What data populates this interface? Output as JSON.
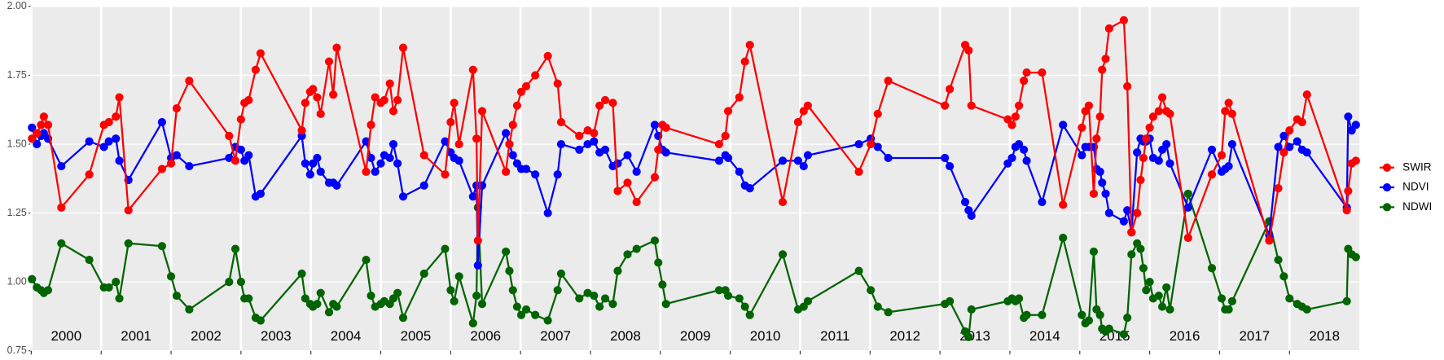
{
  "chart_data": {
    "type": "line",
    "x": [
      2000.01,
      2000.08,
      2000.14,
      2000.18,
      2000.24,
      2000.43,
      2000.83,
      2001.04,
      2001.11,
      2001.21,
      2001.26,
      2001.39,
      2001.87,
      2002.0,
      2002.08,
      2002.26,
      2002.83,
      2002.92,
      2003.0,
      2003.05,
      2003.11,
      2003.21,
      2003.28,
      2003.87,
      2003.92,
      2003.99,
      2004.03,
      2004.09,
      2004.14,
      2004.26,
      2004.32,
      2004.37,
      2004.79,
      2004.86,
      2004.92,
      2005.0,
      2005.05,
      2005.13,
      2005.18,
      2005.24,
      2005.32,
      2005.62,
      2005.92,
      2006.0,
      2006.05,
      2006.12,
      2006.32,
      2006.37,
      2006.39,
      2006.45,
      2006.79,
      2006.84,
      2006.89,
      2006.95,
      2007.01,
      2007.08,
      2007.21,
      2007.39,
      2007.53,
      2007.58,
      2007.84,
      2007.96,
      2008.05,
      2008.13,
      2008.21,
      2008.32,
      2008.39,
      2008.53,
      2008.66,
      2008.92,
      2008.97,
      2009.03,
      2009.08,
      2009.84,
      2009.93,
      2009.97,
      2010.13,
      2010.21,
      2010.28,
      2010.75,
      2010.97,
      2011.05,
      2011.11,
      2011.84,
      2012.01,
      2012.11,
      2012.26,
      2013.07,
      2013.14,
      2013.36,
      2013.41,
      2013.45,
      2013.97,
      2014.03,
      2014.08,
      2014.13,
      2014.2,
      2014.24,
      2014.46,
      2014.76,
      2015.03,
      2015.08,
      2015.13,
      2015.2,
      2015.24,
      2015.29,
      2015.32,
      2015.37,
      2015.42,
      2015.63,
      2015.68,
      2015.74,
      2015.82,
      2015.87,
      2015.91,
      2015.95,
      2016.0,
      2016.05,
      2016.13,
      2016.18,
      2016.24,
      2016.29,
      2016.55,
      2016.89,
      2017.03,
      2017.08,
      2017.13,
      2017.18,
      2017.71,
      2017.84,
      2017.92,
      2018.0,
      2018.11,
      2018.18,
      2018.25,
      2018.82,
      2018.84,
      2018.89,
      2018.95
    ],
    "series": [
      {
        "name": "SWIR",
        "color": "#ff0000",
        "values": [
          1.52,
          1.54,
          1.57,
          1.6,
          1.57,
          1.27,
          1.39,
          1.57,
          1.58,
          1.6,
          1.67,
          1.26,
          1.41,
          1.43,
          1.63,
          1.73,
          1.53,
          1.44,
          1.59,
          1.65,
          1.66,
          1.77,
          1.83,
          1.55,
          1.65,
          1.69,
          1.7,
          1.67,
          1.61,
          1.8,
          1.68,
          1.85,
          1.4,
          1.57,
          1.67,
          1.65,
          1.66,
          1.72,
          1.62,
          1.66,
          1.85,
          1.46,
          1.39,
          1.58,
          1.65,
          1.5,
          1.77,
          1.52,
          1.15,
          1.62,
          1.4,
          1.5,
          1.57,
          1.64,
          1.69,
          1.71,
          1.75,
          1.82,
          1.72,
          1.58,
          1.53,
          1.55,
          1.54,
          1.64,
          1.66,
          1.65,
          1.33,
          1.36,
          1.29,
          1.38,
          1.48,
          1.57,
          1.56,
          1.5,
          1.53,
          1.62,
          1.67,
          1.8,
          1.86,
          1.29,
          1.58,
          1.62,
          1.64,
          1.4,
          1.5,
          1.61,
          1.73,
          1.64,
          1.7,
          1.86,
          1.84,
          1.64,
          1.59,
          1.57,
          1.6,
          1.64,
          1.73,
          1.76,
          1.76,
          1.28,
          1.56,
          1.62,
          1.64,
          1.32,
          1.52,
          1.6,
          1.77,
          1.81,
          1.92,
          1.95,
          1.71,
          1.18,
          1.25,
          1.37,
          1.45,
          1.52,
          1.56,
          1.6,
          1.62,
          1.67,
          1.62,
          1.61,
          1.16,
          1.39,
          1.46,
          1.62,
          1.65,
          1.61,
          1.15,
          1.34,
          1.47,
          1.55,
          1.59,
          1.58,
          1.68,
          1.26,
          1.33,
          1.43,
          1.44
        ]
      },
      {
        "name": "NDVI",
        "color": "#0000ff",
        "values": [
          1.56,
          1.5,
          1.53,
          1.54,
          1.52,
          1.42,
          1.51,
          1.49,
          1.51,
          1.52,
          1.44,
          1.37,
          1.58,
          1.45,
          1.46,
          1.42,
          1.45,
          1.49,
          1.48,
          1.44,
          1.46,
          1.31,
          1.32,
          1.53,
          1.43,
          1.39,
          1.43,
          1.45,
          1.4,
          1.36,
          1.36,
          1.35,
          1.51,
          1.45,
          1.4,
          1.43,
          1.46,
          1.45,
          1.5,
          1.43,
          1.31,
          1.35,
          1.51,
          1.47,
          1.45,
          1.44,
          1.31,
          1.35,
          1.06,
          1.35,
          1.54,
          1.5,
          1.46,
          1.43,
          1.41,
          1.41,
          1.39,
          1.25,
          1.39,
          1.5,
          1.48,
          1.5,
          1.51,
          1.47,
          1.48,
          1.42,
          1.43,
          1.46,
          1.4,
          1.57,
          1.53,
          1.48,
          1.47,
          1.44,
          1.46,
          1.45,
          1.4,
          1.35,
          1.34,
          1.44,
          1.44,
          1.42,
          1.46,
          1.5,
          1.52,
          1.49,
          1.45,
          1.45,
          1.42,
          1.29,
          1.26,
          1.24,
          1.43,
          1.45,
          1.49,
          1.5,
          1.48,
          1.44,
          1.29,
          1.57,
          1.46,
          1.49,
          1.49,
          1.49,
          1.41,
          1.4,
          1.36,
          1.32,
          1.25,
          1.22,
          1.26,
          1.18,
          1.47,
          1.52,
          1.51,
          1.51,
          1.52,
          1.45,
          1.44,
          1.48,
          1.5,
          1.43,
          1.27,
          1.48,
          1.4,
          1.41,
          1.42,
          1.5,
          1.17,
          1.49,
          1.53,
          1.49,
          1.51,
          1.48,
          1.47,
          1.27,
          1.6,
          1.55,
          1.57
        ]
      },
      {
        "name": "NDWI",
        "color": "#006400",
        "values": [
          1.01,
          0.98,
          0.97,
          0.96,
          0.97,
          1.14,
          1.08,
          0.98,
          0.98,
          1.0,
          0.94,
          1.14,
          1.13,
          1.02,
          0.95,
          0.9,
          1.0,
          1.12,
          1.0,
          0.94,
          0.94,
          0.87,
          0.86,
          1.03,
          0.94,
          0.92,
          0.91,
          0.92,
          0.96,
          0.89,
          0.92,
          0.91,
          1.08,
          0.95,
          0.91,
          0.92,
          0.93,
          0.92,
          0.94,
          0.96,
          0.87,
          1.03,
          1.12,
          0.97,
          0.93,
          1.02,
          0.85,
          0.95,
          1.27,
          0.92,
          1.11,
          1.04,
          0.97,
          0.91,
          0.88,
          0.9,
          0.88,
          0.86,
          0.97,
          1.03,
          0.94,
          0.96,
          0.95,
          0.91,
          0.94,
          0.92,
          1.04,
          1.1,
          1.12,
          1.15,
          1.07,
          0.99,
          0.92,
          0.97,
          0.97,
          0.95,
          0.94,
          0.91,
          0.88,
          1.1,
          0.9,
          0.91,
          0.93,
          1.04,
          0.97,
          0.91,
          0.89,
          0.92,
          0.93,
          0.82,
          0.8,
          0.9,
          0.93,
          0.94,
          0.93,
          0.94,
          0.87,
          0.88,
          0.88,
          1.16,
          0.88,
          0.85,
          0.86,
          1.11,
          0.9,
          0.88,
          0.83,
          0.82,
          0.83,
          0.81,
          0.87,
          1.1,
          1.14,
          1.12,
          1.05,
          0.97,
          1.0,
          0.94,
          0.95,
          0.91,
          0.98,
          0.9,
          1.32,
          1.05,
          0.94,
          0.9,
          0.9,
          0.93,
          1.22,
          1.08,
          1.02,
          0.94,
          0.92,
          0.91,
          0.9,
          0.93,
          1.12,
          1.1,
          1.09
        ]
      }
    ],
    "years": [
      2000,
      2001,
      2002,
      2003,
      2004,
      2005,
      2006,
      2007,
      2008,
      2009,
      2010,
      2011,
      2012,
      2013,
      2014,
      2015,
      2016,
      2017,
      2018
    ],
    "xlim": [
      2000,
      2019
    ],
    "ylim": [
      0.75,
      2.0
    ],
    "yticks": [
      0.75,
      {
        "value": 1.0,
        "label": "1.00"
      },
      1.25,
      {
        "value": 1.5,
        "label": "1.50"
      },
      1.75,
      {
        "value": 2.0,
        "label": "2.00"
      }
    ],
    "grid": true,
    "legend": "right"
  }
}
